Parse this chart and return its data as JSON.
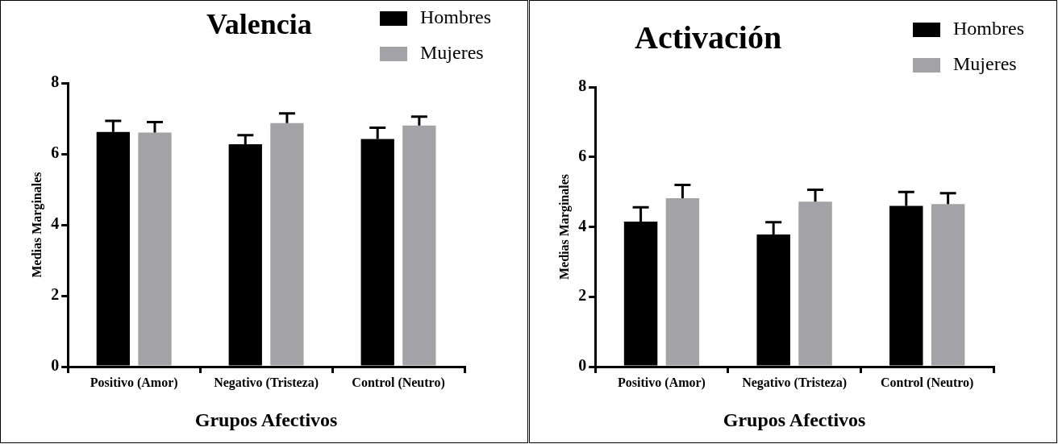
{
  "chart_data": [
    {
      "type": "bar",
      "title": "Valencia",
      "xlabel": "Grupos Afectivos",
      "ylabel": "Medias Marginales",
      "categories": [
        "Positivo (Amor)",
        "Negativo (Tristeza)",
        "Control (Neutro)"
      ],
      "series": [
        {
          "name": "Hombres",
          "color": "#000000",
          "values": [
            6.62,
            6.27,
            6.42
          ],
          "errors": [
            0.31,
            0.26,
            0.32
          ]
        },
        {
          "name": "Mujeres",
          "color": "#a3a2a7",
          "values": [
            6.6,
            6.87,
            6.8
          ],
          "errors": [
            0.3,
            0.27,
            0.25
          ]
        }
      ],
      "ylim": [
        0,
        8
      ],
      "yticks": [
        0,
        2,
        4,
        6,
        8
      ],
      "legend": "top right"
    },
    {
      "type": "bar",
      "title": "Activación",
      "xlabel": "Grupos Afectivos",
      "ylabel": "Medias Marginales",
      "categories": [
        "Positivo (Amor)",
        "Negativo (Tristeza)",
        "Control (Neutro)"
      ],
      "series": [
        {
          "name": "Hombres",
          "color": "#000000",
          "values": [
            4.15,
            3.78,
            4.6
          ],
          "errors": [
            0.41,
            0.35,
            0.4
          ]
        },
        {
          "name": "Mujeres",
          "color": "#a3a2a7",
          "values": [
            4.82,
            4.72,
            4.65
          ],
          "errors": [
            0.38,
            0.34,
            0.31
          ]
        }
      ],
      "ylim": [
        0,
        8
      ],
      "yticks": [
        0,
        2,
        4,
        6,
        8
      ],
      "legend": "top right"
    }
  ]
}
